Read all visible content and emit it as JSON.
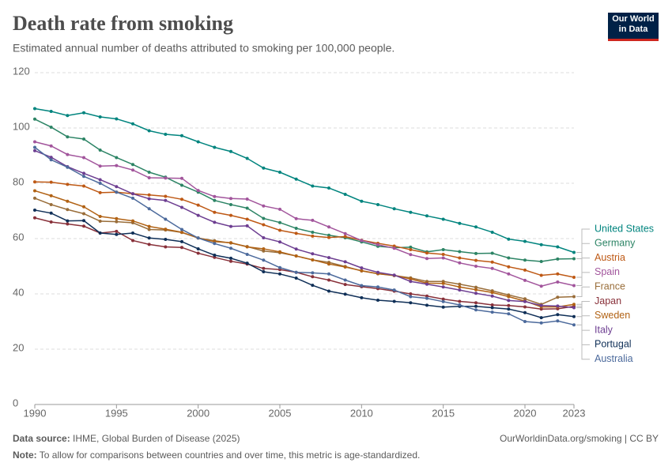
{
  "chart_data": {
    "type": "line",
    "title": "Death rate from smoking",
    "subtitle": "Estimated annual number of deaths attributed to smoking per 100,000 people.",
    "logo": "Our World in Data",
    "source_label": "Data source:",
    "source": "IHME, Global Burden of Disease (2025)",
    "url": "OurWorldinData.org/smoking | CC BY",
    "note_label": "Note:",
    "note": "To allow for comparisons between countries and over time, this metric is age-standardized.",
    "x": [
      1990,
      1991,
      1992,
      1993,
      1994,
      1995,
      1996,
      1997,
      1998,
      1999,
      2000,
      2001,
      2002,
      2003,
      2004,
      2005,
      2006,
      2007,
      2008,
      2009,
      2010,
      2011,
      2012,
      2013,
      2014,
      2015,
      2016,
      2017,
      2018,
      2019,
      2020,
      2021,
      2022,
      2023
    ],
    "xlim": [
      1990,
      2023
    ],
    "xticks": [
      1990,
      1995,
      2000,
      2005,
      2010,
      2015,
      2020,
      2023
    ],
    "ylim": [
      0,
      120
    ],
    "yticks": [
      0,
      20,
      40,
      60,
      80,
      100,
      120
    ],
    "grid": true,
    "series": [
      {
        "name": "United States",
        "color": "#00847e",
        "values": [
          107,
          106,
          104.5,
          105.5,
          104,
          103.3,
          101.5,
          99,
          97.7,
          97.2,
          95,
          93,
          91.5,
          89,
          85.5,
          84,
          81.5,
          79,
          78.3,
          76,
          73.5,
          72.3,
          70.8,
          69.5,
          68.2,
          67,
          65.5,
          64.2,
          62.3,
          59.8,
          59,
          57.8,
          57,
          55
        ]
      },
      {
        "name": "Germany",
        "color": "#2c8465",
        "values": [
          103.2,
          100.3,
          96.8,
          96,
          92,
          89.3,
          86.8,
          84,
          82.2,
          79.3,
          76.8,
          73.8,
          72.3,
          71,
          67.3,
          65.8,
          63.7,
          62.3,
          61.2,
          60.3,
          58.8,
          57.2,
          56.7,
          56.9,
          55.2,
          56,
          55.3,
          54.6,
          54.7,
          53,
          52.2,
          51.7,
          52.6,
          52.7
        ]
      },
      {
        "name": "Austria",
        "color": "#be5915",
        "values": [
          80.5,
          80.4,
          79.6,
          79,
          76.6,
          76.8,
          76.2,
          75.8,
          75.3,
          74.2,
          72.1,
          69.5,
          68.4,
          67,
          65,
          63,
          61.9,
          60.9,
          60.4,
          60.7,
          59.4,
          58.3,
          57.3,
          56,
          54.8,
          54.3,
          53,
          52.1,
          51.5,
          49.8,
          48.6,
          46.7,
          47.2,
          46
        ]
      },
      {
        "name": "Spain",
        "color": "#a2559c",
        "values": [
          95,
          93.5,
          90.4,
          89.3,
          86.2,
          86.4,
          84.8,
          82,
          81.9,
          81.8,
          77.4,
          75.2,
          74.5,
          74.3,
          71.8,
          70.6,
          67.2,
          66.6,
          64.2,
          61.8,
          59.3,
          57.8,
          56.5,
          54.2,
          52.8,
          53,
          51.2,
          50,
          49.2,
          47.2,
          44.9,
          42.8,
          44.3,
          43
        ]
      },
      {
        "name": "France",
        "color": "#996d39",
        "values": [
          74.6,
          72.3,
          70.5,
          69,
          66.3,
          66.1,
          65.7,
          63.3,
          63.1,
          62.2,
          60.2,
          59.2,
          58.4,
          57.1,
          55.5,
          54.9,
          53.7,
          52.3,
          51.4,
          49.9,
          48.3,
          47.3,
          46.6,
          45.8,
          44.5,
          44.5,
          43.5,
          42.4,
          41.1,
          39.6,
          38.2,
          36.2,
          38.8,
          39
        ]
      },
      {
        "name": "Japan",
        "color": "#883039",
        "values": [
          67.5,
          66,
          65.3,
          64.5,
          62,
          62.6,
          59.3,
          57.9,
          57,
          56.8,
          54.7,
          53.2,
          51.8,
          50.8,
          49.2,
          48.8,
          47.8,
          46.2,
          45,
          43.4,
          42.6,
          41.9,
          41,
          40,
          39.2,
          38.1,
          37.3,
          36.8,
          36,
          35.8,
          35.3,
          34.5,
          34.6,
          35.5
        ]
      },
      {
        "name": "Sweden",
        "color": "#b16214",
        "values": [
          77.3,
          75.5,
          73.5,
          71.5,
          68,
          67.2,
          66.4,
          64.4,
          63.4,
          62.3,
          60.2,
          58.9,
          58.5,
          57,
          56.3,
          55.2,
          53.7,
          52.3,
          50.8,
          49.7,
          48.4,
          47.3,
          46.7,
          45.4,
          43.9,
          43.8,
          42.5,
          41.5,
          40.5,
          39,
          37.4,
          35.3,
          35.3,
          36.2
        ]
      },
      {
        "name": "Italy",
        "color": "#6d3e91",
        "values": [
          91.8,
          89.4,
          86,
          83.6,
          81.3,
          78.8,
          76.2,
          74.4,
          73.8,
          71.3,
          68.4,
          65.9,
          64.4,
          64.6,
          60.3,
          58.8,
          56.2,
          54.5,
          53.1,
          51.6,
          49.4,
          47.8,
          46.8,
          44.5,
          43.5,
          42.5,
          41.4,
          40.2,
          39.2,
          37.6,
          37.2,
          35.8,
          35.6,
          35
        ]
      },
      {
        "name": "Portugal",
        "color": "#0f2f57",
        "values": [
          70.3,
          69.2,
          66.4,
          66.5,
          62,
          61.5,
          62,
          60.2,
          59.7,
          58.9,
          56.3,
          54,
          52.9,
          51.1,
          48,
          47.2,
          45.7,
          43.1,
          41,
          39.9,
          38.6,
          37.7,
          37.3,
          36.8,
          35.9,
          35.2,
          35.5,
          35.5,
          35,
          34.5,
          33.2,
          31.4,
          32.5,
          31.8
        ]
      },
      {
        "name": "Australia",
        "color": "#4c6a9c",
        "values": [
          93,
          88.5,
          85.8,
          82.5,
          80,
          76.8,
          74.6,
          70.8,
          67,
          63.3,
          60.2,
          58.2,
          56.5,
          54.3,
          52.2,
          49.5,
          47.8,
          47.6,
          47.2,
          45,
          43,
          42.5,
          41.4,
          39,
          38.4,
          37.2,
          36,
          34.2,
          33.4,
          32.8,
          30,
          29.5,
          30.2,
          28.8
        ]
      }
    ]
  }
}
